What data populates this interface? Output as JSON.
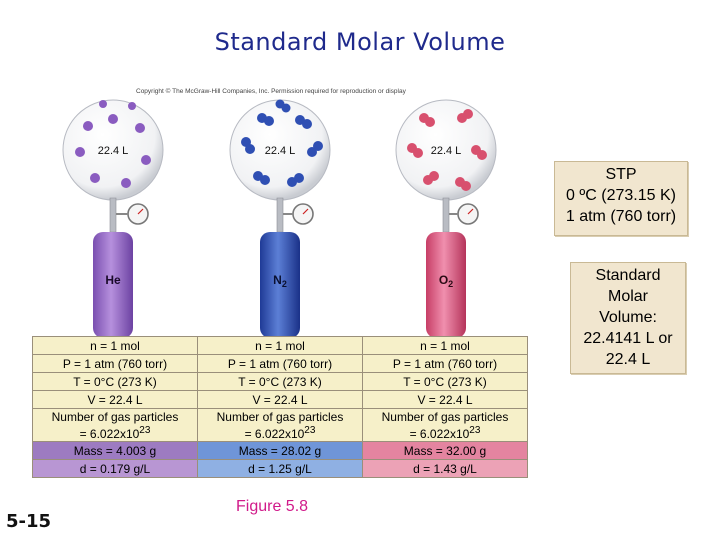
{
  "title": "Standard Molar Volume",
  "copyright": "Copyright © The McGraw-Hill Companies, Inc. Permission required for reproduction or display",
  "gases": [
    {
      "formula": "He",
      "sub": "",
      "balloon_label": "22.4 L",
      "color": "#9a6bc4",
      "n": "n = 1 mol",
      "P": "P = 1 atm (760 torr)",
      "T": "T = 0°C (273 K)",
      "V": "V = 22.4 L",
      "particles_1": "Number of gas particles",
      "particles_2": "= 6.022x10",
      "particles_exp": "23",
      "mass": "Mass = 4.003 g",
      "density": "d = 0.179 g/L"
    },
    {
      "formula": "N",
      "sub": "2",
      "balloon_label": "22.4 L",
      "color": "#3556b8",
      "n": "n = 1 mol",
      "P": "P = 1 atm (760 torr)",
      "T": "T = 0°C (273 K)",
      "V": "V = 22.4 L",
      "particles_1": "Number of gas particles",
      "particles_2": "= 6.022x10",
      "particles_exp": "23",
      "mass": "Mass = 28.02 g",
      "density": "d = 1.25 g/L"
    },
    {
      "formula": "O",
      "sub": "2",
      "balloon_label": "22.4 L",
      "color": "#d9536f",
      "n": "n = 1 mol",
      "P": "P = 1 atm (760 torr)",
      "T": "T = 0°C (273 K)",
      "V": "V = 22.4 L",
      "particles_1": "Number of gas particles",
      "particles_2": "= 6.022x10",
      "particles_exp": "23",
      "mass": "Mass = 32.00 g",
      "density": "d = 1.43 g/L"
    }
  ],
  "stp_box": {
    "line1": "STP",
    "line2": "0 ºC (273.15 K)",
    "line3": "1 atm (760 torr)"
  },
  "molar_box": {
    "line1": "Standard",
    "line2": "Molar",
    "line3": "Volume:",
    "line4": "22.4141 L or",
    "line5": "22.4 L"
  },
  "slide_number": "5-15",
  "figure_caption": "Figure 5.8",
  "colors": {
    "title": "#1f2a8c",
    "caption": "#d11a8a",
    "note_box": "#f1e6cf",
    "table_cream": "#f6f0c9"
  }
}
